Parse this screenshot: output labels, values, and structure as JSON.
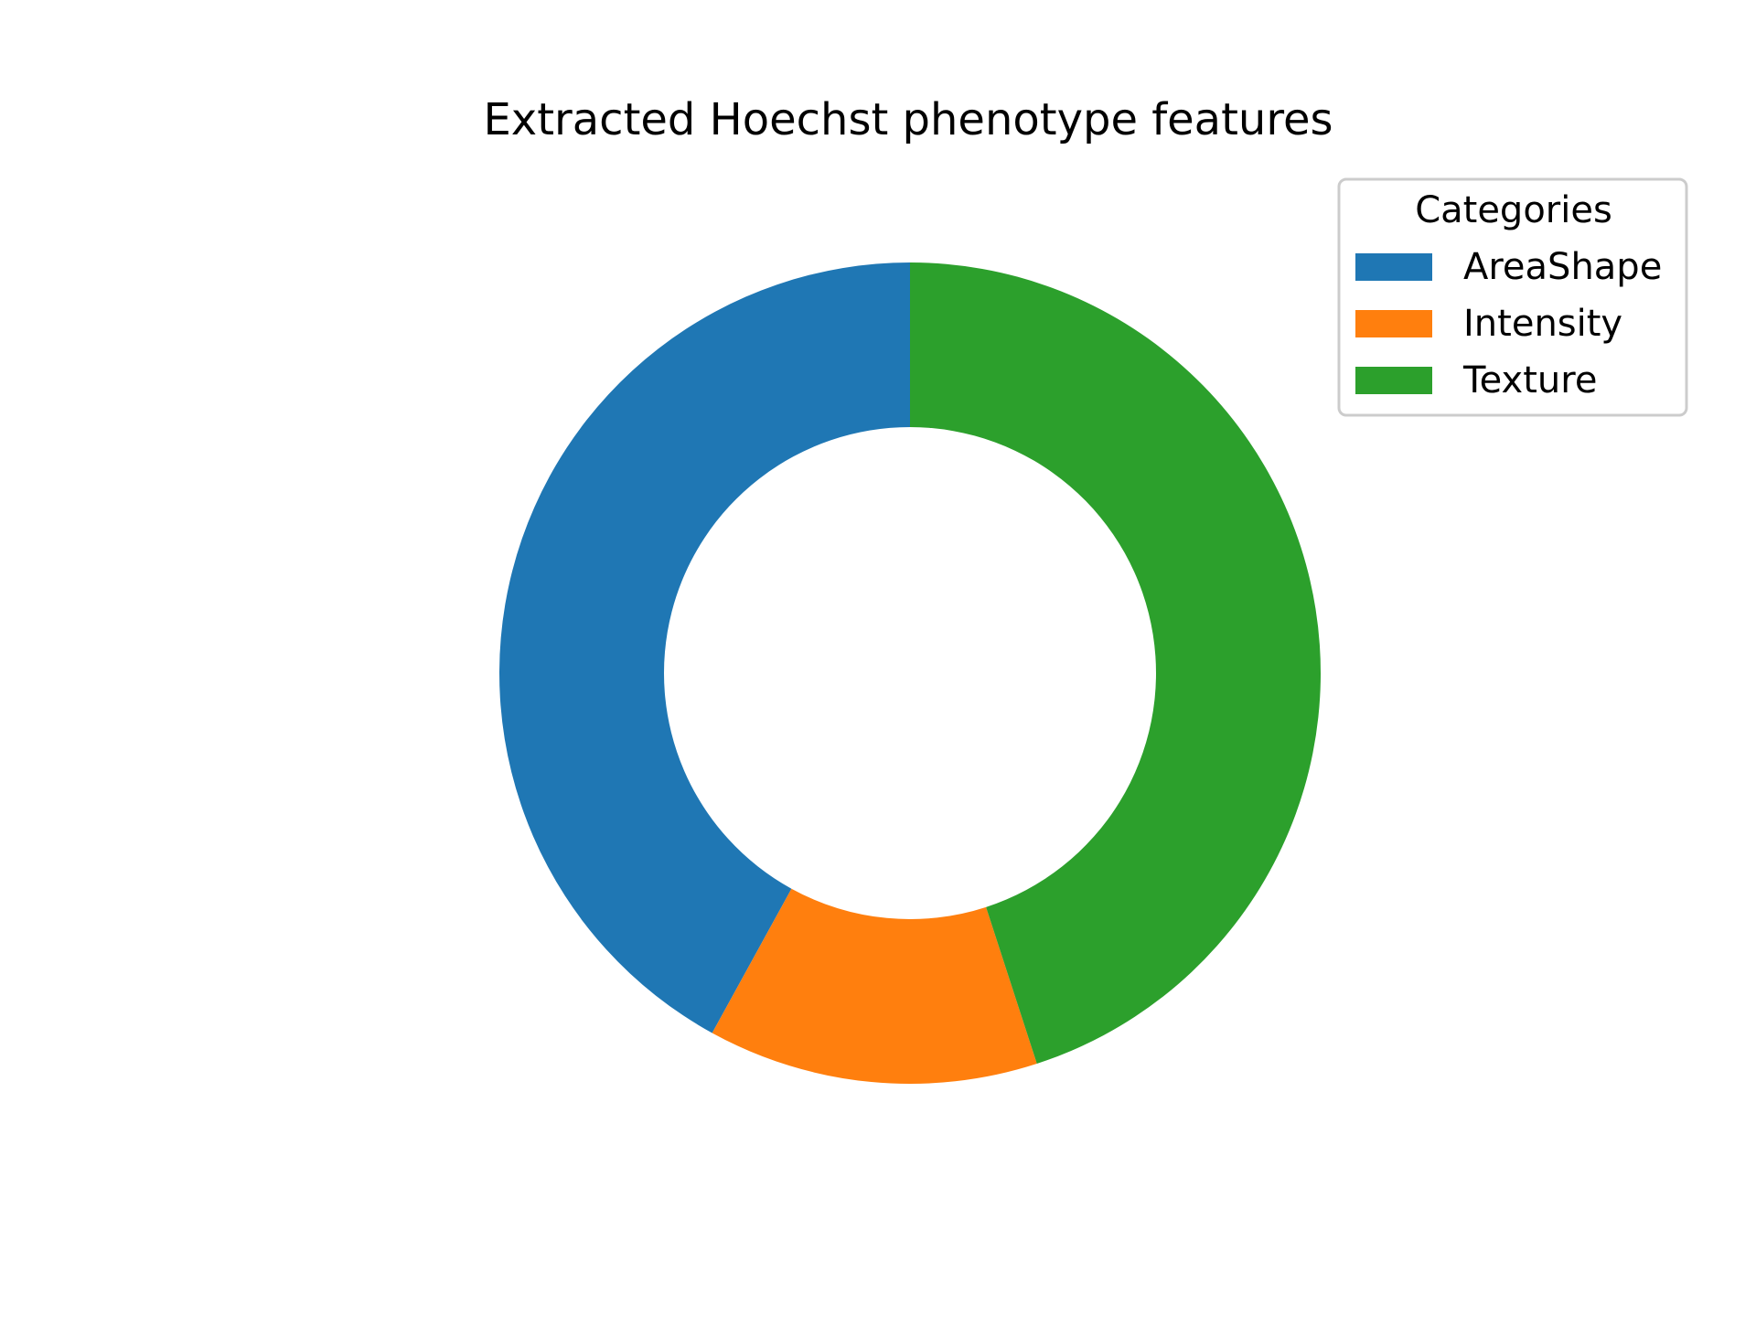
{
  "chart_data": {
    "type": "pie",
    "subtype": "donut",
    "title": "Extracted Hoechst phenotype features",
    "categories": [
      "AreaShape",
      "Intensity",
      "Texture"
    ],
    "values": [
      42,
      13,
      45
    ],
    "colors": [
      "#1f77b4",
      "#ff7f0e",
      "#2ca02c"
    ],
    "start_angle_deg": 90,
    "direction": "counterclockwise",
    "legend": {
      "title": "Categories",
      "placement": "top-right"
    }
  }
}
